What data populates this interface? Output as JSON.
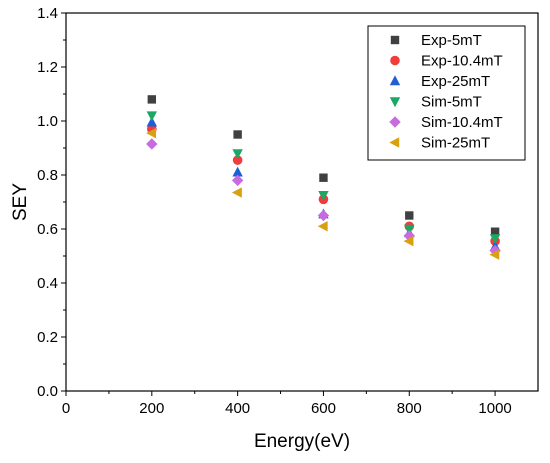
{
  "chart_data": {
    "type": "scatter",
    "title": "",
    "xlabel": "Energy(eV)",
    "ylabel": "SEY",
    "xlim": [
      0,
      1100
    ],
    "ylim": [
      0,
      1.4
    ],
    "x_ticks": [
      0,
      200,
      400,
      600,
      800,
      1000
    ],
    "y_ticks": [
      0.0,
      0.2,
      0.4,
      0.6,
      0.8,
      1.0,
      1.2,
      1.4
    ],
    "x_tick_labels": [
      "0",
      "200",
      "400",
      "600",
      "800",
      "1000"
    ],
    "y_tick_labels": [
      "0.0",
      "0.2",
      "0.4",
      "0.6",
      "0.8",
      "1.0",
      "1.2",
      "1.4"
    ],
    "grid": false,
    "legend_position": "top-right",
    "series": [
      {
        "name": "Exp-5mT",
        "marker": "square",
        "color": "#404040",
        "points": [
          {
            "x": 200,
            "y": 1.08
          },
          {
            "x": 400,
            "y": 0.95
          },
          {
            "x": 600,
            "y": 0.79
          },
          {
            "x": 800,
            "y": 0.65
          },
          {
            "x": 1000,
            "y": 0.59
          }
        ]
      },
      {
        "name": "Exp-10.4mT",
        "marker": "circle",
        "color": "#f03c3c",
        "points": [
          {
            "x": 200,
            "y": 0.97
          },
          {
            "x": 400,
            "y": 0.855
          },
          {
            "x": 600,
            "y": 0.71
          },
          {
            "x": 800,
            "y": 0.61
          },
          {
            "x": 1000,
            "y": 0.555
          }
        ]
      },
      {
        "name": "Exp-25mT",
        "marker": "triangle-up",
        "color": "#1f5fd6",
        "points": [
          {
            "x": 200,
            "y": 0.995
          },
          {
            "x": 400,
            "y": 0.81
          },
          {
            "x": 600,
            "y": 0.655
          },
          {
            "x": 800,
            "y": 0.585
          },
          {
            "x": 1000,
            "y": 0.535
          }
        ]
      },
      {
        "name": "Sim-5mT",
        "marker": "triangle-down",
        "color": "#1aa865",
        "points": [
          {
            "x": 200,
            "y": 1.02
          },
          {
            "x": 400,
            "y": 0.88
          },
          {
            "x": 600,
            "y": 0.725
          },
          {
            "x": 800,
            "y": 0.6
          },
          {
            "x": 1000,
            "y": 0.565
          }
        ]
      },
      {
        "name": "Sim-10.4mT",
        "marker": "diamond",
        "color": "#c86be0",
        "points": [
          {
            "x": 200,
            "y": 0.915
          },
          {
            "x": 400,
            "y": 0.78
          },
          {
            "x": 600,
            "y": 0.65
          },
          {
            "x": 800,
            "y": 0.575
          },
          {
            "x": 1000,
            "y": 0.52
          }
        ]
      },
      {
        "name": "Sim-25mT",
        "marker": "triangle-left",
        "color": "#d9a010",
        "points": [
          {
            "x": 200,
            "y": 0.955
          },
          {
            "x": 400,
            "y": 0.735
          },
          {
            "x": 600,
            "y": 0.61
          },
          {
            "x": 800,
            "y": 0.555
          },
          {
            "x": 1000,
            "y": 0.505
          }
        ]
      }
    ]
  }
}
